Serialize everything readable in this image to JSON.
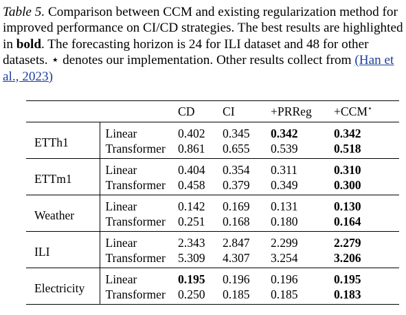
{
  "caption": {
    "label": "Table 5.",
    "text_1": " Comparison between CCM and existing regularization method for improved performance on CI/CD strategies. The best results are highlighted in ",
    "bold_word": "bold",
    "text_2": ". The forecasting horizon is 24 for ILI dataset and 48 for other datasets. ⋆ denotes our implementation. Other results collect from ",
    "reference": "(Han et al., 2023)"
  },
  "table": {
    "headers": [
      "",
      "",
      "CD",
      "CI",
      "+PRReg",
      "+CCM"
    ],
    "ccm_mark": "⋆",
    "groups": [
      {
        "dataset": "ETTh1",
        "rows": [
          {
            "model": "Linear",
            "cd": "0.402",
            "ci": "0.345",
            "prreg": "0.342",
            "ccm": "0.342",
            "bold": [
              "prreg",
              "ccm"
            ]
          },
          {
            "model": "Transformer",
            "cd": "0.861",
            "ci": "0.655",
            "prreg": "0.539",
            "ccm": "0.518",
            "bold": [
              "ccm"
            ]
          }
        ]
      },
      {
        "dataset": "ETTm1",
        "rows": [
          {
            "model": "Linear",
            "cd": "0.404",
            "ci": "0.354",
            "prreg": "0.311",
            "ccm": "0.310",
            "bold": [
              "ccm"
            ]
          },
          {
            "model": "Transformer",
            "cd": "0.458",
            "ci": "0.379",
            "prreg": "0.349",
            "ccm": "0.300",
            "bold": [
              "ccm"
            ]
          }
        ]
      },
      {
        "dataset": "Weather",
        "rows": [
          {
            "model": "Linear",
            "cd": "0.142",
            "ci": "0.169",
            "prreg": "0.131",
            "ccm": "0.130",
            "bold": [
              "ccm"
            ]
          },
          {
            "model": "Transformer",
            "cd": "0.251",
            "ci": "0.168",
            "prreg": "0.180",
            "ccm": "0.164",
            "bold": [
              "ccm"
            ]
          }
        ]
      },
      {
        "dataset": "ILI",
        "rows": [
          {
            "model": "Linear",
            "cd": "2.343",
            "ci": "2.847",
            "prreg": "2.299",
            "ccm": "2.279",
            "bold": [
              "ccm"
            ]
          },
          {
            "model": "Transformer",
            "cd": "5.309",
            "ci": "4.307",
            "prreg": "3.254",
            "ccm": "3.206",
            "bold": [
              "ccm"
            ]
          }
        ]
      },
      {
        "dataset": "Electricity",
        "rows": [
          {
            "model": "Linear",
            "cd": "0.195",
            "ci": "0.196",
            "prreg": "0.196",
            "ccm": "0.195",
            "bold": [
              "cd",
              "ccm"
            ]
          },
          {
            "model": "Transformer",
            "cd": "0.250",
            "ci": "0.185",
            "prreg": "0.185",
            "ccm": "0.183",
            "bold": [
              "ccm"
            ]
          }
        ]
      }
    ]
  }
}
